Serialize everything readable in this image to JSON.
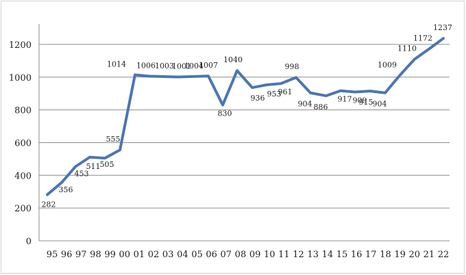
{
  "chart_data": {
    "type": "line",
    "title": "",
    "xlabel": "",
    "ylabel": "",
    "ylim": [
      0,
      1300
    ],
    "yticks": [
      0,
      200,
      400,
      600,
      800,
      1000,
      1200
    ],
    "grid": true,
    "legend": "none",
    "x_tick_labels": [
      "95",
      "96",
      "97",
      "98",
      "99",
      "00",
      "01",
      "02",
      "03",
      "04",
      "05",
      "06",
      "07",
      "08",
      "09",
      "10",
      "11",
      "12",
      "13",
      "14",
      "15",
      "16",
      "17",
      "18",
      "19",
      "20",
      "21",
      "22"
    ],
    "line_color": "#4a76b3",
    "grid_color": "#8c8c8c",
    "series": [
      {
        "name": "",
        "points": [
          {
            "x": "95",
            "y": 282,
            "label": "282"
          },
          {
            "x": "96",
            "y": 356,
            "label": "356"
          },
          {
            "x": "97",
            "y": 453,
            "label": "453"
          },
          {
            "x": "98",
            "y": 511,
            "label": "511"
          },
          {
            "x": "99",
            "y": 505,
            "label": "505"
          },
          {
            "x": "00",
            "y": 555,
            "label": "555"
          },
          {
            "x": "00",
            "y": 1014,
            "label": "1014"
          },
          {
            "x": "01",
            "y": 1006,
            "label": "1006"
          },
          {
            "x": "02",
            "y": 1003,
            "label": "1003"
          },
          {
            "x": "03",
            "y": 1001,
            "label": "1001"
          },
          {
            "x": "04",
            "y": 1004,
            "label": "1004"
          },
          {
            "x": "05",
            "y": 1007,
            "label": "1007"
          },
          {
            "x": "06",
            "y": 830,
            "label": "830"
          },
          {
            "x": "07",
            "y": 1040,
            "label": "1040"
          },
          {
            "x": "08",
            "y": 936,
            "label": "936"
          },
          {
            "x": "09",
            "y": 953,
            "label": "953"
          },
          {
            "x": "10",
            "y": 961,
            "label": "961"
          },
          {
            "x": "11",
            "y": 998,
            "label": "998"
          },
          {
            "x": "12",
            "y": 904,
            "label": "904"
          },
          {
            "x": "13",
            "y": 886,
            "label": "886"
          },
          {
            "x": "14",
            "y": 917,
            "label": "917"
          },
          {
            "x": "15",
            "y": 909,
            "label": "909"
          },
          {
            "x": "16",
            "y": 915,
            "label": "915"
          },
          {
            "x": "17",
            "y": 904,
            "label": "904"
          },
          {
            "x": "18",
            "y": 1009,
            "label": "1009"
          },
          {
            "x": "19",
            "y": 1110,
            "label": "1110"
          },
          {
            "x": "20",
            "y": 1172,
            "label": "1172"
          },
          {
            "x": "21",
            "y": 1237,
            "label": "1237"
          }
        ]
      }
    ]
  }
}
